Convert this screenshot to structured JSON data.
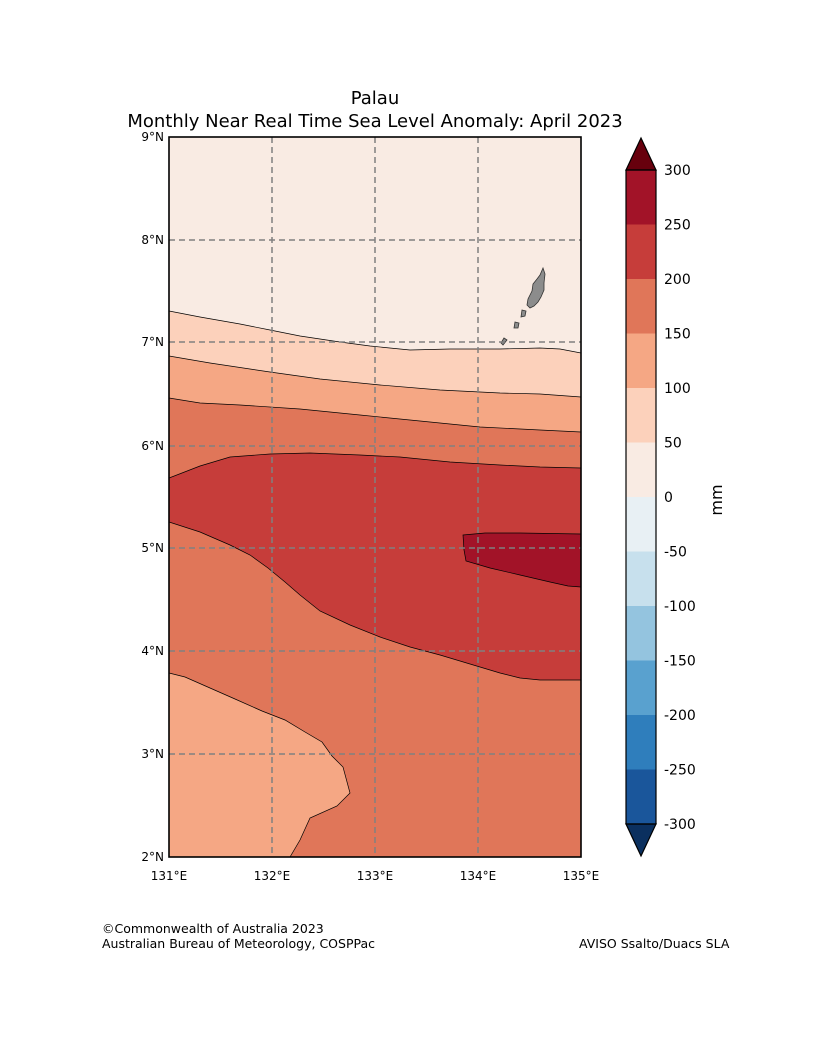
{
  "title": {
    "line1": "Palau",
    "line2": "Monthly Near Real Time Sea Level Anomaly: April 2023"
  },
  "map": {
    "lon_range": [
      131,
      135
    ],
    "lat_range": [
      2,
      9
    ],
    "lon_ticks": [
      "131°E",
      "132°E",
      "133°E",
      "134°E",
      "135°E"
    ],
    "lat_ticks": [
      "2°N",
      "3°N",
      "4°N",
      "5°N",
      "6°N",
      "7°N",
      "8°N",
      "9°N"
    ],
    "grid": "dashed",
    "land_color": "#8c8c8c"
  },
  "colorbar": {
    "label": "mm",
    "ticks": [
      "-300",
      "-250",
      "-200",
      "-150",
      "-100",
      "-50",
      "0",
      "50",
      "100",
      "150",
      "200",
      "250",
      "300"
    ],
    "levels": [
      -300,
      -250,
      -200,
      -150,
      -100,
      -50,
      0,
      50,
      100,
      150,
      200,
      250,
      300
    ],
    "colors": [
      "#1a569b",
      "#2f7ebc",
      "#59a1cf",
      "#94c4df",
      "#c7e0ed",
      "#e8f0f4",
      "#f9ebe3",
      "#fcd1bb",
      "#f5a784",
      "#e07659",
      "#c63d3a",
      "#a21328"
    ],
    "under_color": "#0b305f",
    "over_color": "#67000d"
  },
  "footer": {
    "copyright": "©Commonwealth of Australia 2023",
    "agency": "Australian Bureau of Meteorology, COSPPac",
    "source": "AVISO Ssalto/Duacs SLA"
  }
}
